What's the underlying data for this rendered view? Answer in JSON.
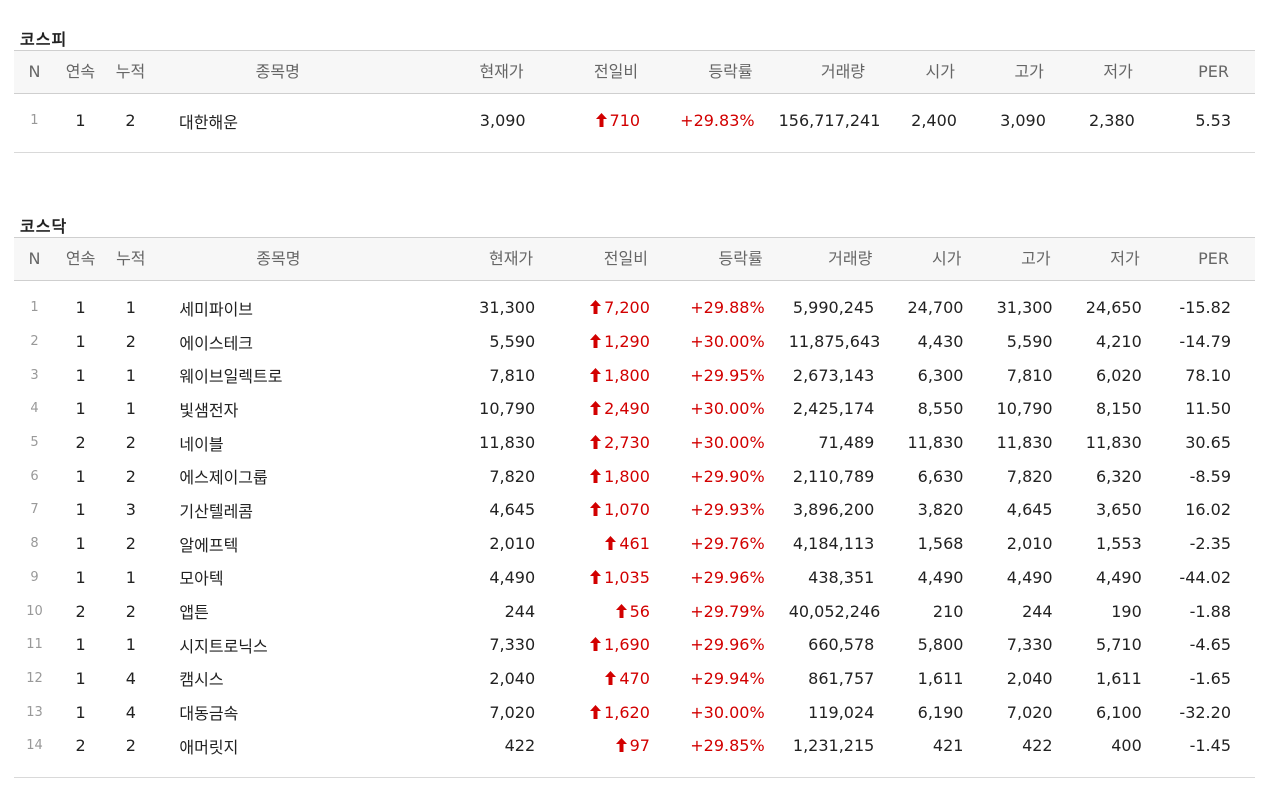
{
  "colors": {
    "up": "#d20000",
    "header_bg": "#f7f7f7",
    "border": "#cfcfcf"
  },
  "columns": [
    "N",
    "연속",
    "누적",
    "종목명",
    "현재가",
    "전일비",
    "등락률",
    "거래량",
    "시가",
    "고가",
    "저가",
    "PER"
  ],
  "up_icon": "arrow-up-icon",
  "kospi": {
    "title": "코스피",
    "rows": [
      {
        "n": "1",
        "streak": "1",
        "total": "2",
        "name": "대한해운",
        "price": "3,090",
        "change": "710",
        "rate": "+29.83%",
        "volume": "156,717,241",
        "open": "2,400",
        "high": "3,090",
        "low": "2,380",
        "per": "5.53"
      }
    ]
  },
  "kosdaq": {
    "title": "코스닥",
    "rows": [
      {
        "n": "1",
        "streak": "1",
        "total": "1",
        "name": "세미파이브",
        "price": "31,300",
        "change": "7,200",
        "rate": "+29.88%",
        "volume": "5,990,245",
        "open": "24,700",
        "high": "31,300",
        "low": "24,650",
        "per": "-15.82"
      },
      {
        "n": "2",
        "streak": "1",
        "total": "2",
        "name": "에이스테크",
        "price": "5,590",
        "change": "1,290",
        "rate": "+30.00%",
        "volume": "11,875,643",
        "open": "4,430",
        "high": "5,590",
        "low": "4,210",
        "per": "-14.79"
      },
      {
        "n": "3",
        "streak": "1",
        "total": "1",
        "name": "웨이브일렉트로",
        "price": "7,810",
        "change": "1,800",
        "rate": "+29.95%",
        "volume": "2,673,143",
        "open": "6,300",
        "high": "7,810",
        "low": "6,020",
        "per": "78.10"
      },
      {
        "n": "4",
        "streak": "1",
        "total": "1",
        "name": "빛샘전자",
        "price": "10,790",
        "change": "2,490",
        "rate": "+30.00%",
        "volume": "2,425,174",
        "open": "8,550",
        "high": "10,790",
        "low": "8,150",
        "per": "11.50"
      },
      {
        "n": "5",
        "streak": "2",
        "total": "2",
        "name": "네이블",
        "price": "11,830",
        "change": "2,730",
        "rate": "+30.00%",
        "volume": "71,489",
        "open": "11,830",
        "high": "11,830",
        "low": "11,830",
        "per": "30.65"
      },
      {
        "n": "6",
        "streak": "1",
        "total": "2",
        "name": "에스제이그룹",
        "price": "7,820",
        "change": "1,800",
        "rate": "+29.90%",
        "volume": "2,110,789",
        "open": "6,630",
        "high": "7,820",
        "low": "6,320",
        "per": "-8.59"
      },
      {
        "n": "7",
        "streak": "1",
        "total": "3",
        "name": "기산텔레콤",
        "price": "4,645",
        "change": "1,070",
        "rate": "+29.93%",
        "volume": "3,896,200",
        "open": "3,820",
        "high": "4,645",
        "low": "3,650",
        "per": "16.02"
      },
      {
        "n": "8",
        "streak": "1",
        "total": "2",
        "name": "알에프텍",
        "price": "2,010",
        "change": "461",
        "rate": "+29.76%",
        "volume": "4,184,113",
        "open": "1,568",
        "high": "2,010",
        "low": "1,553",
        "per": "-2.35"
      },
      {
        "n": "9",
        "streak": "1",
        "total": "1",
        "name": "모아텍",
        "price": "4,490",
        "change": "1,035",
        "rate": "+29.96%",
        "volume": "438,351",
        "open": "4,490",
        "high": "4,490",
        "low": "4,490",
        "per": "-44.02"
      },
      {
        "n": "10",
        "streak": "2",
        "total": "2",
        "name": "앱튼",
        "price": "244",
        "change": "56",
        "rate": "+29.79%",
        "volume": "40,052,246",
        "open": "210",
        "high": "244",
        "low": "190",
        "per": "-1.88"
      },
      {
        "n": "11",
        "streak": "1",
        "total": "1",
        "name": "시지트로닉스",
        "price": "7,330",
        "change": "1,690",
        "rate": "+29.96%",
        "volume": "660,578",
        "open": "5,800",
        "high": "7,330",
        "low": "5,710",
        "per": "-4.65"
      },
      {
        "n": "12",
        "streak": "1",
        "total": "4",
        "name": "캠시스",
        "price": "2,040",
        "change": "470",
        "rate": "+29.94%",
        "volume": "861,757",
        "open": "1,611",
        "high": "2,040",
        "low": "1,611",
        "per": "-1.65"
      },
      {
        "n": "13",
        "streak": "1",
        "total": "4",
        "name": "대동금속",
        "price": "7,020",
        "change": "1,620",
        "rate": "+30.00%",
        "volume": "119,024",
        "open": "6,190",
        "high": "7,020",
        "low": "6,100",
        "per": "-32.20"
      },
      {
        "n": "14",
        "streak": "2",
        "total": "2",
        "name": "애머릿지",
        "price": "422",
        "change": "97",
        "rate": "+29.85%",
        "volume": "1,231,215",
        "open": "421",
        "high": "422",
        "low": "400",
        "per": "-1.45"
      }
    ]
  }
}
